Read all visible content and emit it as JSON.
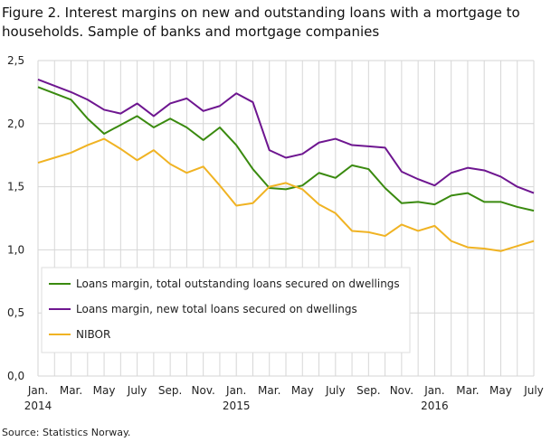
{
  "chart_data": {
    "type": "line",
    "title": "Figure 2. Interest margins on new and outstanding loans with a mortgage to households. Sample of banks and mortgage companies",
    "source": "Source: Statistics Norway.",
    "x_tick_labels": [
      "Jan.",
      "Mar.",
      "May",
      "July",
      "Sep.",
      "Nov.",
      "Jan.",
      "Mar.",
      "May",
      "July",
      "Sep.",
      "Nov.",
      "Jan.",
      "Mar.",
      "May",
      "July"
    ],
    "year_labels": [
      "2014",
      "2015",
      "2016"
    ],
    "y_tick_labels": [
      "0,0",
      "0,5",
      "1,0",
      "1,5",
      "2,0",
      "2,5"
    ],
    "ylim": [
      0,
      2.5
    ],
    "grid": true,
    "legend_position": "bottom-left",
    "series": [
      {
        "name": "Loans margin, total outstanding loans secured on dwellings",
        "color": "#3a8a0f",
        "values": [
          2.29,
          2.24,
          2.19,
          2.04,
          1.92,
          1.99,
          2.06,
          1.97,
          2.04,
          1.97,
          1.87,
          1.97,
          1.83,
          1.64,
          1.49,
          1.48,
          1.51,
          1.61,
          1.57,
          1.67,
          1.64,
          1.49,
          1.37,
          1.38,
          1.36,
          1.43,
          1.45,
          1.38,
          1.38,
          1.34,
          1.31
        ]
      },
      {
        "name": "Loans margin, new total loans secured on dwellings",
        "color": "#6e1690",
        "values": [
          2.35,
          2.3,
          2.25,
          2.19,
          2.11,
          2.08,
          2.16,
          2.06,
          2.16,
          2.2,
          2.1,
          2.14,
          2.24,
          2.17,
          1.79,
          1.73,
          1.76,
          1.85,
          1.88,
          1.83,
          1.82,
          1.81,
          1.62,
          1.56,
          1.51,
          1.61,
          1.65,
          1.63,
          1.58,
          1.5,
          1.45
        ]
      },
      {
        "name": "NIBOR",
        "color": "#f0b323",
        "values": [
          1.69,
          1.73,
          1.77,
          1.83,
          1.88,
          1.8,
          1.71,
          1.79,
          1.68,
          1.61,
          1.66,
          1.51,
          1.35,
          1.37,
          1.5,
          1.53,
          1.48,
          1.36,
          1.29,
          1.15,
          1.14,
          1.11,
          1.2,
          1.15,
          1.19,
          1.07,
          1.02,
          1.01,
          0.99,
          1.03,
          1.07
        ]
      }
    ]
  }
}
